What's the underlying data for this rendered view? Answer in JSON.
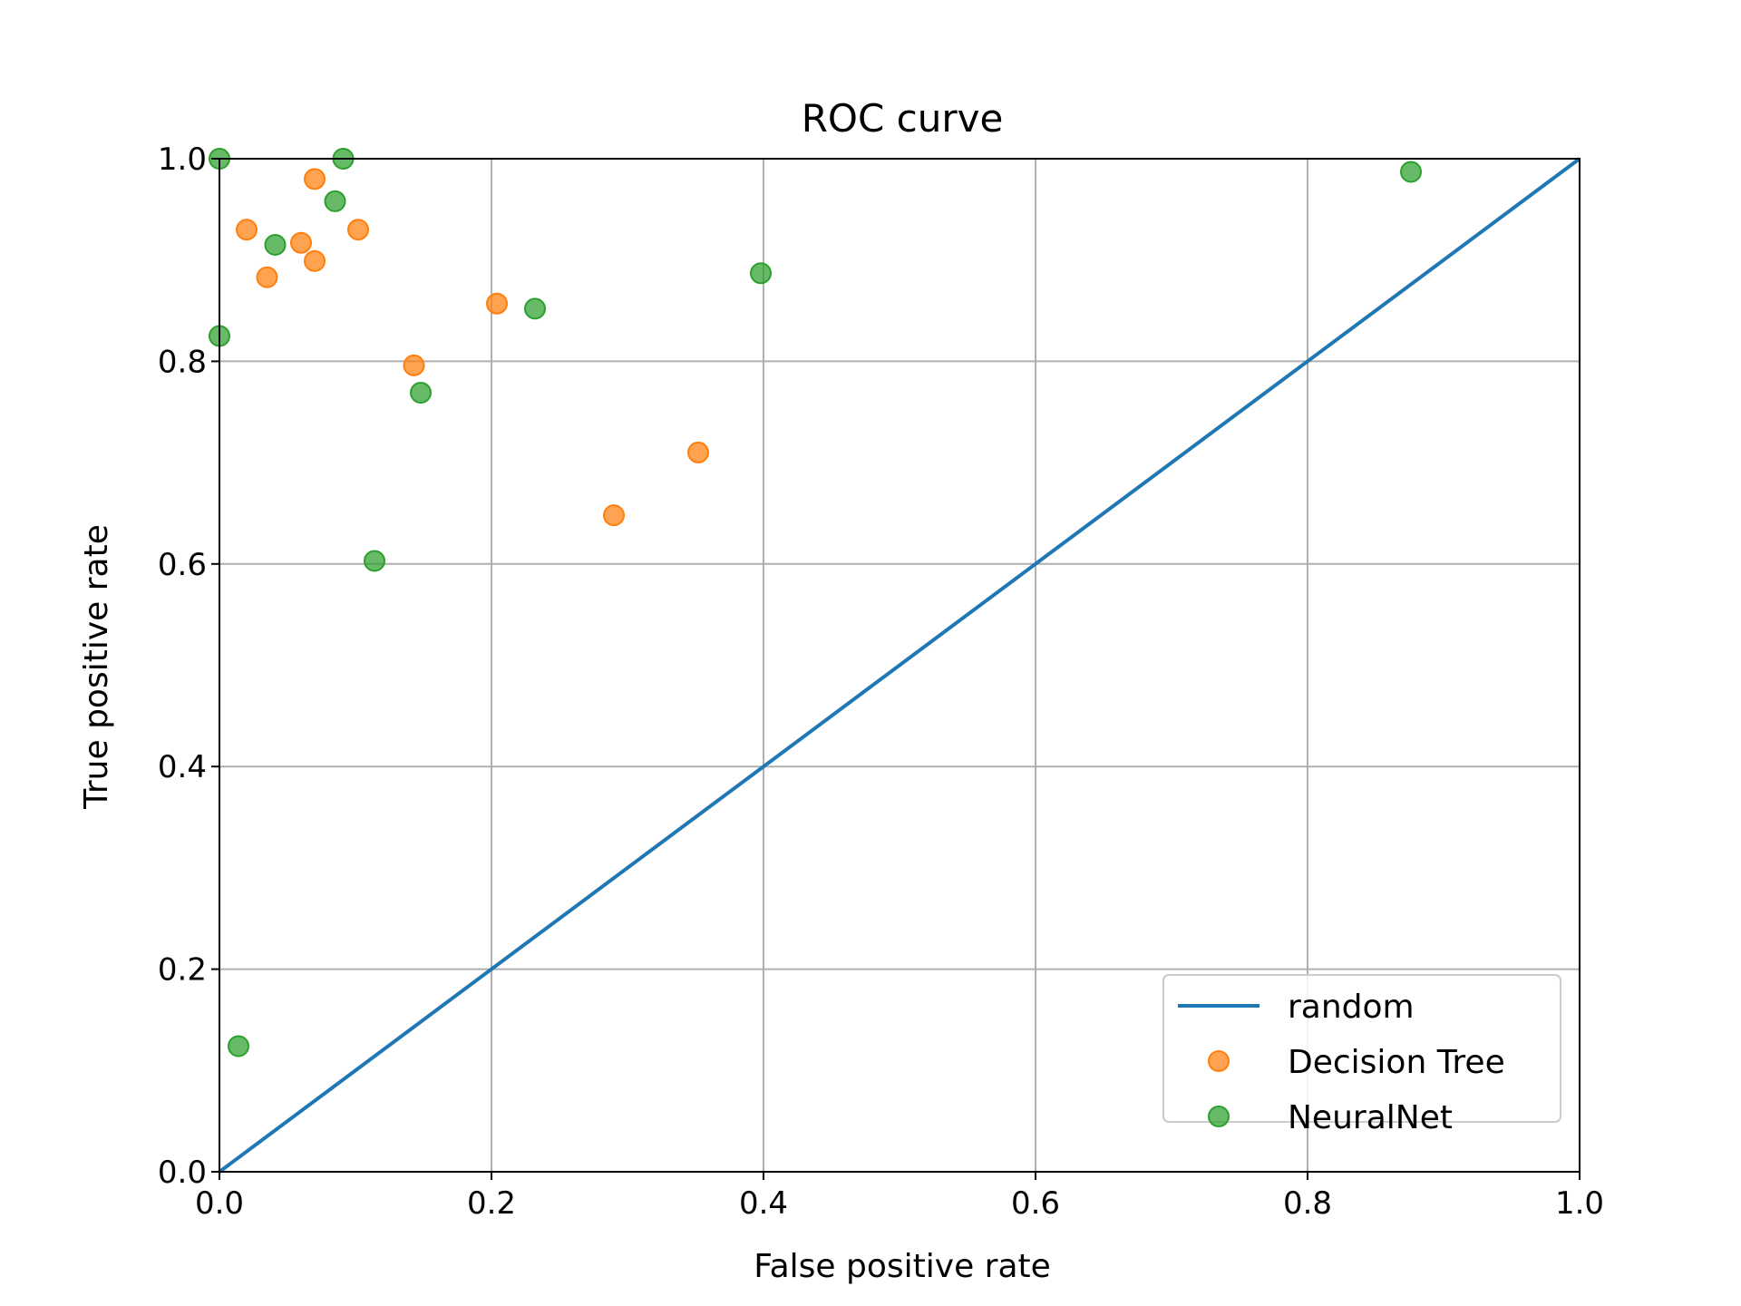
{
  "chart_data": {
    "type": "scatter",
    "title": "ROC curve",
    "xlabel": "False positive rate",
    "ylabel": "True positive rate",
    "xlim": [
      0.0,
      1.0
    ],
    "ylim": [
      0.0,
      1.0
    ],
    "xticks": [
      "0.0",
      "0.2",
      "0.4",
      "0.6",
      "0.8",
      "1.0"
    ],
    "yticks": [
      "0.0",
      "0.2",
      "0.4",
      "0.6",
      "0.8",
      "1.0"
    ],
    "grid": true,
    "legend_position": "lower-right",
    "series": [
      {
        "name": "random",
        "kind": "line",
        "color": "#1f77b4",
        "points": [
          [
            0.0,
            0.0
          ],
          [
            1.0,
            1.0
          ]
        ]
      },
      {
        "name": "Decision Tree",
        "kind": "scatter",
        "color": "#ff7f0e",
        "points": [
          [
            0.07,
            0.98
          ],
          [
            0.02,
            0.93
          ],
          [
            0.102,
            0.93
          ],
          [
            0.06,
            0.917
          ],
          [
            0.07,
            0.899
          ],
          [
            0.035,
            0.883
          ],
          [
            0.204,
            0.857
          ],
          [
            0.143,
            0.796
          ],
          [
            0.352,
            0.71
          ],
          [
            0.29,
            0.648
          ]
        ]
      },
      {
        "name": "NeuralNet",
        "kind": "scatter",
        "color": "#2ca02c",
        "points": [
          [
            0.0,
            1.0
          ],
          [
            0.091,
            1.0
          ],
          [
            0.085,
            0.958
          ],
          [
            0.041,
            0.915
          ],
          [
            0.0,
            0.825
          ],
          [
            0.232,
            0.852
          ],
          [
            0.398,
            0.887
          ],
          [
            0.148,
            0.769
          ],
          [
            0.114,
            0.603
          ],
          [
            0.014,
            0.124
          ],
          [
            0.876,
            0.987
          ]
        ]
      }
    ]
  }
}
